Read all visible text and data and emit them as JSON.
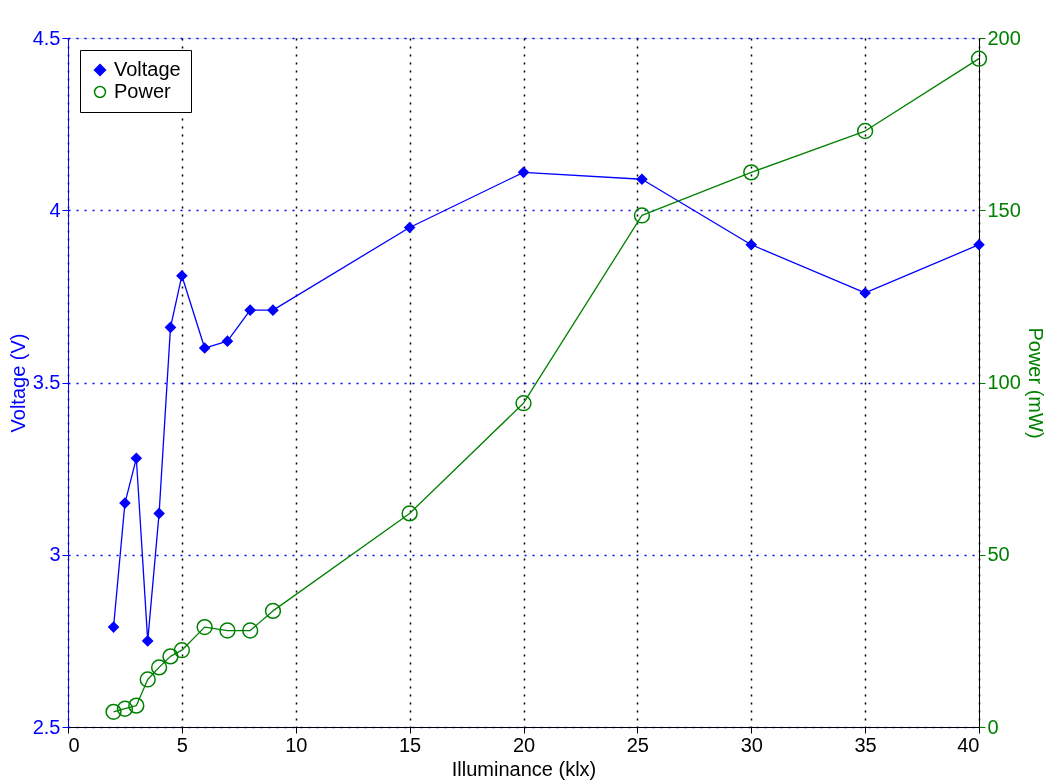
{
  "chart_data": {
    "type": "line",
    "xlabel": "Illuminance (klx)",
    "ylabel": "Voltage (V)",
    "y2label": "Power (mW)",
    "xlim": [
      0,
      40
    ],
    "xticks": [
      0,
      5,
      10,
      15,
      20,
      25,
      30,
      35,
      40
    ],
    "ylim": [
      2.5,
      4.5
    ],
    "yticks": [
      2.5,
      3,
      3.5,
      4,
      4.5
    ],
    "y2lim": [
      0,
      200
    ],
    "y2ticks": [
      0,
      50,
      100,
      150,
      200
    ],
    "grid": true,
    "legend": "top left",
    "line_style": "solid",
    "series": [
      {
        "name": "Voltage",
        "color": "#0000ff",
        "marker": "diamond",
        "axis": "y",
        "x": [
          2,
          2.5,
          3,
          3.5,
          4,
          4.5,
          5,
          6,
          7,
          8,
          9,
          15,
          20,
          25.2,
          30,
          35,
          40
        ],
        "values": [
          2.79,
          3.15,
          3.28,
          2.75,
          3.12,
          3.66,
          3.81,
          3.6,
          3.62,
          3.71,
          3.71,
          3.95,
          4.11,
          4.09,
          3.9,
          3.76,
          3.9
        ]
      },
      {
        "name": "Power",
        "color": "#008000",
        "marker": "circle",
        "axis": "y2",
        "x": [
          2,
          2.5,
          3,
          3.5,
          4,
          4.5,
          5,
          6,
          7,
          8,
          9,
          15,
          20,
          25.2,
          30,
          35,
          40
        ],
        "values": [
          4.4,
          5.3,
          6.2,
          13.8,
          17.3,
          20.5,
          22.3,
          29,
          28,
          28,
          33.7,
          62,
          94,
          148.5,
          161,
          173,
          194
        ]
      }
    ]
  }
}
